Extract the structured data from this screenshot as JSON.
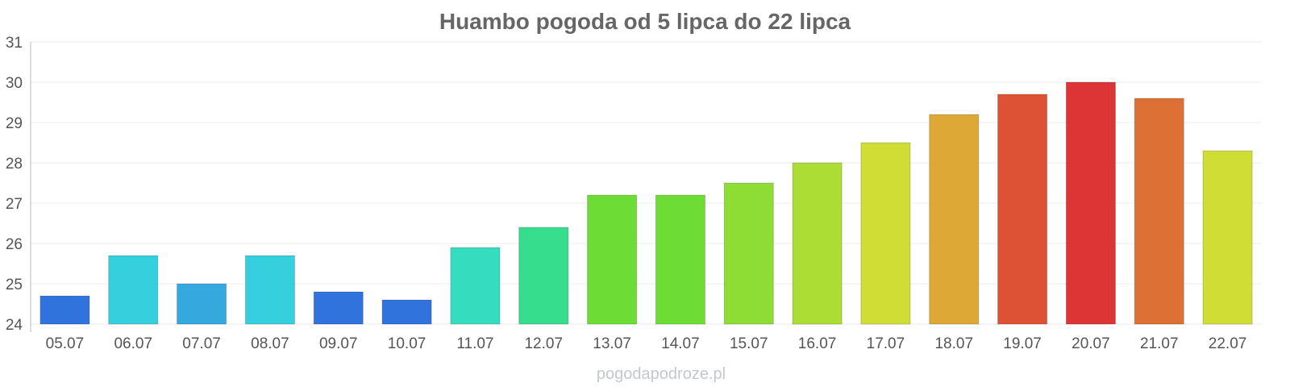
{
  "chart_data": {
    "type": "bar",
    "title": "Huambo pogoda od 5 lipca do 22 lipca",
    "xlabel": "",
    "ylabel": "",
    "ylim": [
      24,
      31
    ],
    "yticks": [
      "24",
      "25",
      "26",
      "27",
      "28",
      "29",
      "30",
      "31"
    ],
    "grid": true,
    "legend": "none",
    "categories": [
      "05.07",
      "06.07",
      "07.07",
      "08.07",
      "09.07",
      "10.07",
      "11.07",
      "12.07",
      "13.07",
      "14.07",
      "15.07",
      "16.07",
      "17.07",
      "18.07",
      "19.07",
      "20.07",
      "21.07",
      "22.07"
    ],
    "series": [
      {
        "values": [
          24.7,
          25.7,
          25.0,
          25.7,
          24.8,
          24.6,
          25.9,
          26.4,
          27.2,
          27.2,
          27.5,
          28.0,
          28.5,
          29.2,
          29.7,
          30.0,
          29.6,
          28.3
        ],
        "colors": [
          "#3173dd",
          "#35cfdd",
          "#35a8dd",
          "#35cfdd",
          "#3173dd",
          "#3173dd",
          "#35ddbe",
          "#35dd8c",
          "#6ddd35",
          "#6ddd35",
          "#8ddd35",
          "#acdd35",
          "#cfdd35",
          "#dda835",
          "#dd5235",
          "#dd3535",
          "#dd7035",
          "#cfdd35"
        ]
      }
    ]
  },
  "watermark": "pogodapodroze.pl"
}
